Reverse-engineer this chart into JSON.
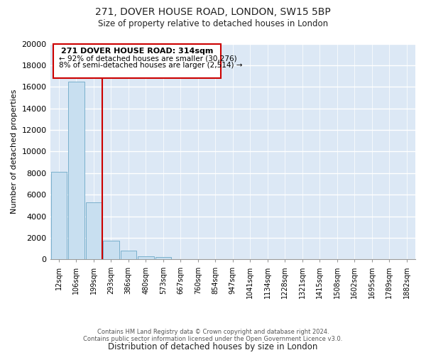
{
  "title_line1": "271, DOVER HOUSE ROAD, LONDON, SW15 5BP",
  "title_line2": "Size of property relative to detached houses in London",
  "xlabel": "Distribution of detached houses by size in London",
  "ylabel": "Number of detached properties",
  "bar_labels": [
    "12sqm",
    "106sqm",
    "199sqm",
    "293sqm",
    "386sqm",
    "480sqm",
    "573sqm",
    "667sqm",
    "760sqm",
    "854sqm",
    "947sqm",
    "1041sqm",
    "1134sqm",
    "1228sqm",
    "1321sqm",
    "1415sqm",
    "1508sqm",
    "1602sqm",
    "1695sqm",
    "1789sqm",
    "1882sqm"
  ],
  "bar_values": [
    8100,
    16500,
    5300,
    1750,
    800,
    280,
    220,
    0,
    0,
    0,
    0,
    0,
    0,
    0,
    0,
    0,
    0,
    0,
    0,
    0,
    0
  ],
  "bar_color": "#c8dff0",
  "bar_edge_color": "#7ab0cc",
  "vline_color": "#cc0000",
  "ylim": [
    0,
    20000
  ],
  "yticks": [
    0,
    2000,
    4000,
    6000,
    8000,
    10000,
    12000,
    14000,
    16000,
    18000,
    20000
  ],
  "annotation_title": "271 DOVER HOUSE ROAD: 314sqm",
  "annotation_line1": "← 92% of detached houses are smaller (30,276)",
  "annotation_line2": "8% of semi-detached houses are larger (2,514) →",
  "annotation_box_color": "#ffffff",
  "annotation_box_edgecolor": "#cc0000",
  "footer_line1": "Contains HM Land Registry data © Crown copyright and database right 2024.",
  "footer_line2": "Contains public sector information licensed under the Open Government Licence v3.0.",
  "background_color": "#dce8f5"
}
